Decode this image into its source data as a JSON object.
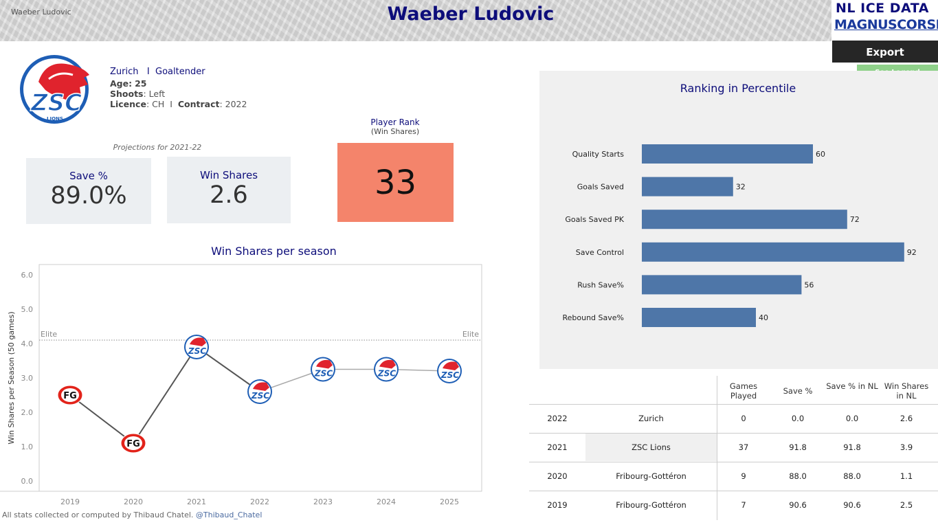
{
  "header": {
    "left_text": "Waeber Ludovic",
    "title": "Waeber Ludovic"
  },
  "brand": {
    "line1": "NL ICE DATA",
    "line2": "MAGNUSCORSI"
  },
  "actions": {
    "export_label": "Export",
    "legend_label": "See Legend"
  },
  "player": {
    "team": "Zurich",
    "separator": "I",
    "position": "Goaltender",
    "age_label": "Age:",
    "age": "25",
    "shoots_label": "Shoots",
    "shoots": ": Left",
    "licence_label": "Licence",
    "licence": ": CH",
    "contract_label": "Contract",
    "contract": ": 2022",
    "team_logo_text": "ZSC",
    "team_logo_sub": "LIONS"
  },
  "projections": {
    "label": "Projections for 2021-22",
    "save_pct_label": "Save %",
    "save_pct_value": "89.0%",
    "win_shares_label": "Win Shares",
    "win_shares_value": "2.6"
  },
  "rank": {
    "label": "Player Rank",
    "sub_label": "(Win Shares)",
    "value": "33",
    "color": "#f4846b"
  },
  "ws_chart": {
    "title": "Win Shares per season"
  },
  "chart_data": [
    {
      "type": "line",
      "title": "Win Shares per season",
      "ylabel": "Win Shares per Season (50 games)",
      "xlabel": "",
      "x": [
        "2019",
        "2020",
        "2021",
        "2022",
        "2023",
        "2024",
        "2025"
      ],
      "y_ticks": [
        "0.0",
        "1.0",
        "2.0",
        "3.0",
        "4.0",
        "5.0",
        "6.0"
      ],
      "ylim": [
        -0.3,
        6.3
      ],
      "series": [
        {
          "values": [
            2.5,
            1.1,
            3.9,
            2.6,
            3.25,
            3.25,
            3.2
          ],
          "team_markers": [
            "FG",
            "FG",
            "ZSC",
            "ZSC",
            "ZSC",
            "ZSC",
            "ZSC"
          ]
        }
      ],
      "reference_line": {
        "label": "Elite",
        "value": 4.1
      },
      "colors": {
        "actual": "#555555",
        "projection": "#aaaaaa"
      },
      "grid": false
    },
    {
      "type": "bar",
      "orientation": "horizontal",
      "title": "Ranking in Percentile",
      "categories": [
        "Quality Starts",
        "Goals Saved",
        "Goals Saved PK",
        "Save Control",
        "Rush Save%",
        "Rebound Save%"
      ],
      "values": [
        60,
        32,
        72,
        92,
        56,
        40
      ],
      "xlim": [
        0,
        100
      ],
      "color": "#4e76a8"
    }
  ],
  "pct_chart": {
    "title": "Ranking in Percentile"
  },
  "table": {
    "headers": [
      "Games Played",
      "Save %",
      "Save % in NL",
      "Win Shares in NL"
    ],
    "rows": [
      {
        "year": "2022",
        "team": "Zurich",
        "gp": "0",
        "sv": "0.0",
        "sv_nl": "0.0",
        "ws_nl": "2.6"
      },
      {
        "year": "2021",
        "team": "ZSC Lions",
        "gp": "37",
        "sv": "91.8",
        "sv_nl": "91.8",
        "ws_nl": "3.9"
      },
      {
        "year": "2020",
        "team": "Fribourg-Gottéron",
        "gp": "9",
        "sv": "88.0",
        "sv_nl": "88.0",
        "ws_nl": "1.1"
      },
      {
        "year": "2019",
        "team": "Fribourg-Gottéron",
        "gp": "7",
        "sv": "90.6",
        "sv_nl": "90.6",
        "ws_nl": "2.5"
      }
    ]
  },
  "footer": {
    "text": "All stats collected or computed by Thibaud Chatel.",
    "handle": "@Thibaud_Chatel"
  }
}
